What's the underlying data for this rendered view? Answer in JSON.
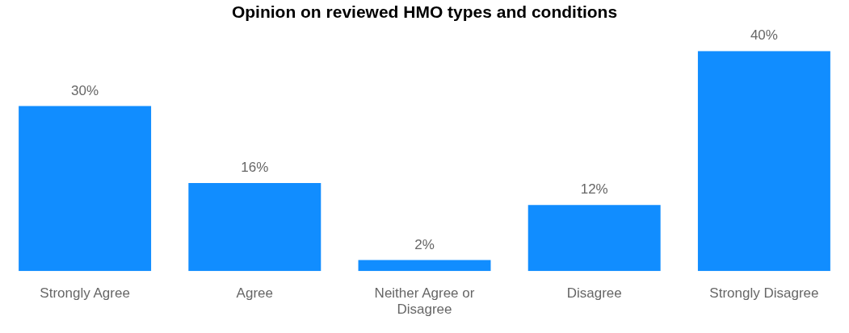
{
  "chart_data": {
    "type": "bar",
    "title": "Opinion on reviewed HMO types and conditions",
    "categories": [
      "Strongly Agree",
      "Agree",
      "Neither Agree or Disagree",
      "Disagree",
      "Strongly Disagree"
    ],
    "values": [
      30,
      16,
      2,
      12,
      40
    ],
    "value_labels": [
      "30%",
      "16%",
      "2%",
      "12%",
      "40%"
    ],
    "color": "#118dff",
    "grid": false,
    "legend": false
  }
}
